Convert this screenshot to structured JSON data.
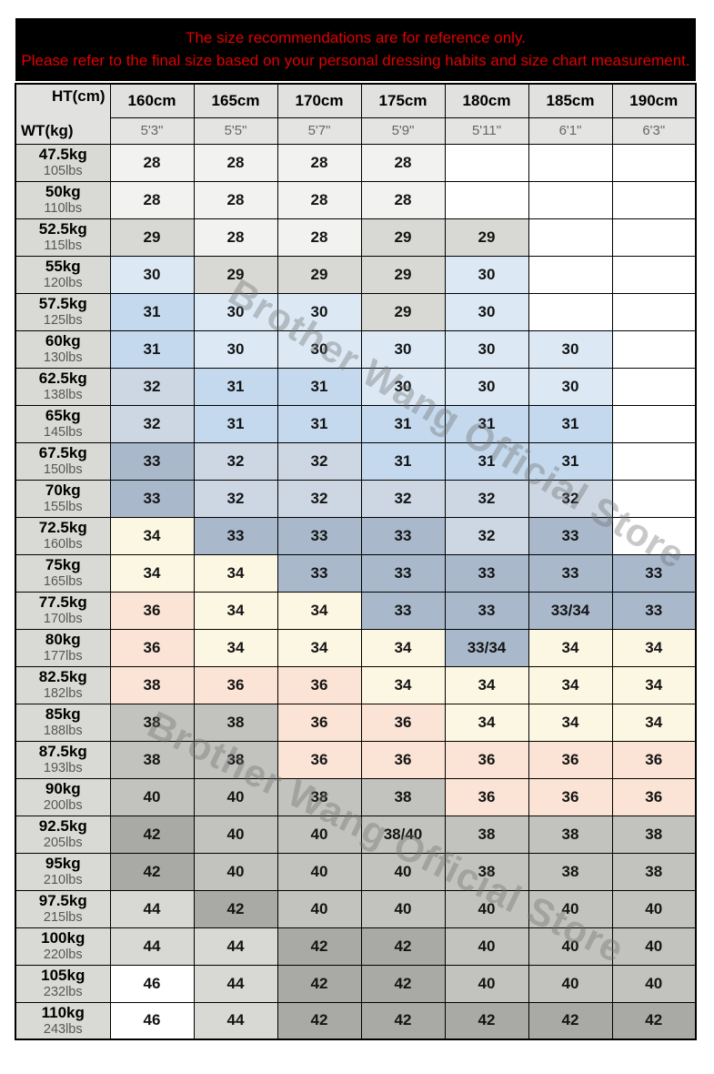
{
  "banner": {
    "line1": "The size recommendations are for reference only.",
    "line2": "Please refer to the final size based on your personal dressing habits and size chart measurement.",
    "text_color": "#e10000",
    "bg_color": "#000000"
  },
  "watermark": {
    "text": "Brother Wang Official Store"
  },
  "chart_data": {
    "type": "table",
    "title": "Pants size recommendation by height (HT) and weight (WT)",
    "corner": {
      "top": "HT(cm)",
      "bottom": "WT(kg)"
    },
    "columns": [
      {
        "cm": "160cm",
        "ft": "5'3\""
      },
      {
        "cm": "165cm",
        "ft": "5'5\""
      },
      {
        "cm": "170cm",
        "ft": "5'7\""
      },
      {
        "cm": "175cm",
        "ft": "5'9\""
      },
      {
        "cm": "180cm",
        "ft": "5'11\""
      },
      {
        "cm": "185cm",
        "ft": "6'1\""
      },
      {
        "cm": "190cm",
        "ft": "6'3\""
      }
    ],
    "palette": {
      "w": "#ffffff",
      "ow": "#f2f2f0",
      "g1": "#d8d8d4",
      "b1": "#dce9f5",
      "b2": "#c4d9ed",
      "b3": "#ccd7e3",
      "b4": "#a9b9cb",
      "cr": "#fcf7e3",
      "pk": "#fbe3d5",
      "g2": "#c2c2be",
      "g3": "#a9a9a5"
    },
    "rows": [
      {
        "kg": "47.5kg",
        "lbs": "105lbs",
        "sizes": [
          "28",
          "28",
          "28",
          "28",
          "",
          "",
          ""
        ],
        "colors": [
          "ow",
          "ow",
          "ow",
          "ow",
          "w",
          "w",
          "w"
        ]
      },
      {
        "kg": "50kg",
        "lbs": "110lbs",
        "sizes": [
          "28",
          "28",
          "28",
          "28",
          "",
          "",
          ""
        ],
        "colors": [
          "ow",
          "ow",
          "ow",
          "ow",
          "w",
          "w",
          "w"
        ]
      },
      {
        "kg": "52.5kg",
        "lbs": "115lbs",
        "sizes": [
          "29",
          "28",
          "28",
          "29",
          "29",
          "",
          ""
        ],
        "colors": [
          "g1",
          "ow",
          "ow",
          "g1",
          "g1",
          "w",
          "w"
        ]
      },
      {
        "kg": "55kg",
        "lbs": "120lbs",
        "sizes": [
          "30",
          "29",
          "29",
          "29",
          "30",
          "",
          ""
        ],
        "colors": [
          "b1",
          "g1",
          "g1",
          "g1",
          "b1",
          "w",
          "w"
        ]
      },
      {
        "kg": "57.5kg",
        "lbs": "125lbs",
        "sizes": [
          "31",
          "30",
          "30",
          "29",
          "30",
          "",
          ""
        ],
        "colors": [
          "b2",
          "b1",
          "b1",
          "g1",
          "b1",
          "w",
          "w"
        ]
      },
      {
        "kg": "60kg",
        "lbs": "130lbs",
        "sizes": [
          "31",
          "30",
          "30",
          "30",
          "30",
          "30",
          ""
        ],
        "colors": [
          "b2",
          "b1",
          "b1",
          "b1",
          "b1",
          "b1",
          "w"
        ]
      },
      {
        "kg": "62.5kg",
        "lbs": "138lbs",
        "sizes": [
          "32",
          "31",
          "31",
          "30",
          "30",
          "30",
          ""
        ],
        "colors": [
          "b3",
          "b2",
          "b2",
          "b1",
          "b1",
          "b1",
          "w"
        ]
      },
      {
        "kg": "65kg",
        "lbs": "145lbs",
        "sizes": [
          "32",
          "31",
          "31",
          "31",
          "31",
          "31",
          ""
        ],
        "colors": [
          "b3",
          "b2",
          "b2",
          "b2",
          "b2",
          "b2",
          "w"
        ]
      },
      {
        "kg": "67.5kg",
        "lbs": "150lbs",
        "sizes": [
          "33",
          "32",
          "32",
          "31",
          "31",
          "31",
          ""
        ],
        "colors": [
          "b4",
          "b3",
          "b3",
          "b2",
          "b2",
          "b2",
          "w"
        ]
      },
      {
        "kg": "70kg",
        "lbs": "155lbs",
        "sizes": [
          "33",
          "32",
          "32",
          "32",
          "32",
          "32",
          ""
        ],
        "colors": [
          "b4",
          "b3",
          "b3",
          "b3",
          "b3",
          "b3",
          "w"
        ]
      },
      {
        "kg": "72.5kg",
        "lbs": "160lbs",
        "sizes": [
          "34",
          "33",
          "33",
          "33",
          "32",
          "33",
          ""
        ],
        "colors": [
          "cr",
          "b4",
          "b4",
          "b4",
          "b3",
          "b4",
          "w"
        ]
      },
      {
        "kg": "75kg",
        "lbs": "165lbs",
        "sizes": [
          "34",
          "34",
          "33",
          "33",
          "33",
          "33",
          "33"
        ],
        "colors": [
          "cr",
          "cr",
          "b4",
          "b4",
          "b4",
          "b4",
          "b4"
        ]
      },
      {
        "kg": "77.5kg",
        "lbs": "170lbs",
        "sizes": [
          "36",
          "34",
          "34",
          "33",
          "33",
          "33/34",
          "33"
        ],
        "colors": [
          "pk",
          "cr",
          "cr",
          "b4",
          "b4",
          "b4",
          "b4"
        ]
      },
      {
        "kg": "80kg",
        "lbs": "177lbs",
        "sizes": [
          "36",
          "34",
          "34",
          "34",
          "33/34",
          "34",
          "34"
        ],
        "colors": [
          "pk",
          "cr",
          "cr",
          "cr",
          "b4",
          "cr",
          "cr"
        ]
      },
      {
        "kg": "82.5kg",
        "lbs": "182lbs",
        "sizes": [
          "38",
          "36",
          "36",
          "34",
          "34",
          "34",
          "34"
        ],
        "colors": [
          "pk",
          "pk",
          "pk",
          "cr",
          "cr",
          "cr",
          "cr"
        ]
      },
      {
        "kg": "85kg",
        "lbs": "188lbs",
        "sizes": [
          "38",
          "38",
          "36",
          "36",
          "34",
          "34",
          "34"
        ],
        "colors": [
          "g2",
          "g2",
          "pk",
          "pk",
          "cr",
          "cr",
          "cr"
        ]
      },
      {
        "kg": "87.5kg",
        "lbs": "193lbs",
        "sizes": [
          "38",
          "38",
          "36",
          "36",
          "36",
          "36",
          "36"
        ],
        "colors": [
          "g2",
          "g2",
          "pk",
          "pk",
          "pk",
          "pk",
          "pk"
        ]
      },
      {
        "kg": "90kg",
        "lbs": "200lbs",
        "sizes": [
          "40",
          "40",
          "38",
          "38",
          "36",
          "36",
          "36"
        ],
        "colors": [
          "g2",
          "g2",
          "g2",
          "g2",
          "pk",
          "pk",
          "pk"
        ]
      },
      {
        "kg": "92.5kg",
        "lbs": "205lbs",
        "sizes": [
          "42",
          "40",
          "40",
          "38/40",
          "38",
          "38",
          "38"
        ],
        "colors": [
          "g3",
          "g2",
          "g2",
          "g2",
          "g2",
          "g2",
          "g2"
        ]
      },
      {
        "kg": "95kg",
        "lbs": "210lbs",
        "sizes": [
          "42",
          "40",
          "40",
          "40",
          "38",
          "38",
          "38"
        ],
        "colors": [
          "g3",
          "g2",
          "g2",
          "g2",
          "g2",
          "g2",
          "g2"
        ]
      },
      {
        "kg": "97.5kg",
        "lbs": "215lbs",
        "sizes": [
          "44",
          "42",
          "40",
          "40",
          "40",
          "40",
          "40"
        ],
        "colors": [
          "g1",
          "g3",
          "g2",
          "g2",
          "g2",
          "g2",
          "g2"
        ]
      },
      {
        "kg": "100kg",
        "lbs": "220lbs",
        "sizes": [
          "44",
          "44",
          "42",
          "42",
          "40",
          "40",
          "40"
        ],
        "colors": [
          "g1",
          "g1",
          "g3",
          "g3",
          "g2",
          "g2",
          "g2"
        ]
      },
      {
        "kg": "105kg",
        "lbs": "232lbs",
        "sizes": [
          "46",
          "44",
          "42",
          "42",
          "40",
          "40",
          "40"
        ],
        "colors": [
          "w",
          "g1",
          "g3",
          "g3",
          "g2",
          "g2",
          "g2"
        ]
      },
      {
        "kg": "110kg",
        "lbs": "243lbs",
        "sizes": [
          "46",
          "44",
          "42",
          "42",
          "42",
          "42",
          "42"
        ],
        "colors": [
          "w",
          "g1",
          "g3",
          "g3",
          "g3",
          "g3",
          "g3"
        ]
      }
    ]
  }
}
